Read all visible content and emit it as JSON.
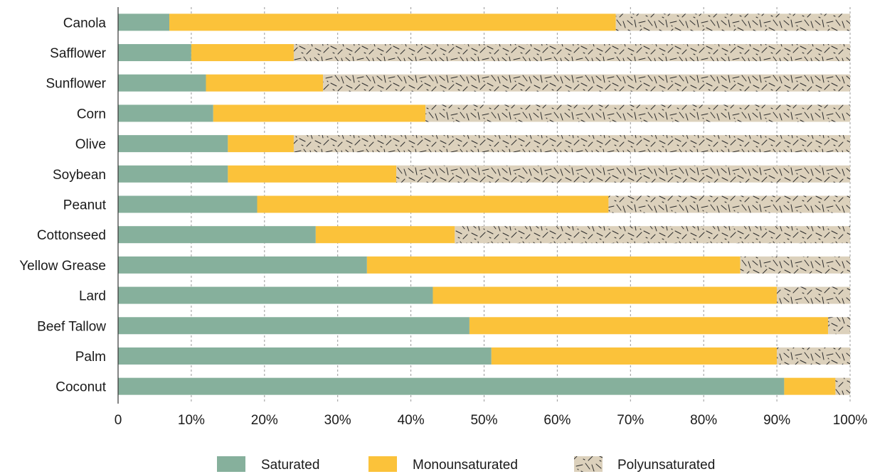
{
  "chart_data": {
    "type": "bar",
    "orientation": "horizontal",
    "stacked": true,
    "categories": [
      "Canola",
      "Safflower",
      "Sunflower",
      "Corn",
      "Olive",
      "Soybean",
      "Peanut",
      "Cottonseed",
      "Yellow Grease",
      "Lard",
      "Beef Tallow",
      "Palm",
      "Coconut"
    ],
    "series": [
      {
        "name": "Saturated",
        "color": "#86b09c",
        "pattern": "none",
        "values": [
          7,
          10,
          12,
          13,
          15,
          15,
          19,
          27,
          34,
          43,
          48,
          51,
          91
        ]
      },
      {
        "name": "Monounsaturated",
        "color": "#fbc23a",
        "pattern": "none",
        "values": [
          61,
          14,
          16,
          29,
          9,
          23,
          48,
          19,
          51,
          47,
          49,
          39,
          7
        ]
      },
      {
        "name": "Polyunsaturated",
        "color": "#dcd1bc",
        "pattern": "dashes",
        "values": [
          32,
          76,
          72,
          58,
          76,
          62,
          33,
          54,
          15,
          10,
          3,
          10,
          2
        ]
      }
    ],
    "xlim": [
      0,
      100
    ],
    "x_ticks": [
      0,
      10,
      20,
      30,
      40,
      50,
      60,
      70,
      80,
      90,
      100
    ],
    "x_tick_labels": [
      "0",
      "10%",
      "20%",
      "30%",
      "40%",
      "50%",
      "60%",
      "70%",
      "80%",
      "90%",
      "100%"
    ],
    "grid": "vertical-dashed",
    "legend_position": "bottom-center"
  }
}
